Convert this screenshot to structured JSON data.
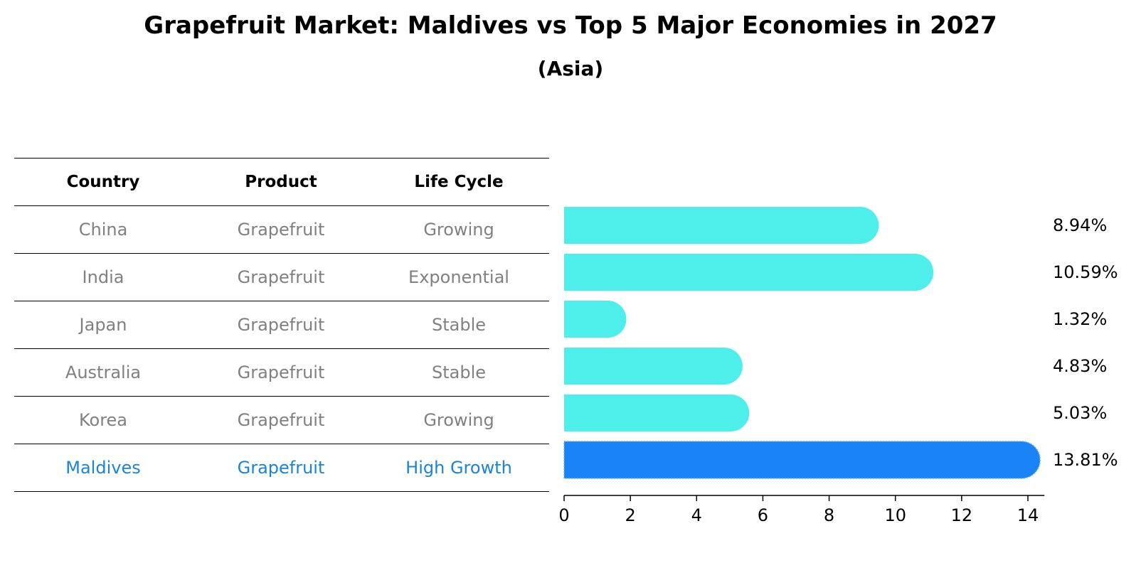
{
  "title": "Grapefruit Market: Maldives vs Top 5 Major Economies in 2027",
  "subtitle": "(Asia)",
  "table": {
    "headers": [
      "Country",
      "Product",
      "Life Cycle"
    ],
    "rows": [
      {
        "country": "China",
        "product": "Grapefruit",
        "life_cycle": "Growing"
      },
      {
        "country": "India",
        "product": "Grapefruit",
        "life_cycle": "Exponential"
      },
      {
        "country": "Japan",
        "product": "Grapefruit",
        "life_cycle": "Stable"
      },
      {
        "country": "Australia",
        "product": "Grapefruit",
        "life_cycle": "Stable"
      },
      {
        "country": "Korea",
        "product": "Grapefruit",
        "life_cycle": "Growing"
      },
      {
        "country": "Maldives",
        "product": "Grapefruit",
        "life_cycle": "High Growth"
      }
    ]
  },
  "chart_data": {
    "type": "bar",
    "orientation": "horizontal",
    "title": "Grapefruit Market: Maldives vs Top 5 Major Economies in 2027",
    "subtitle": "(Asia)",
    "categories": [
      "China",
      "India",
      "Japan",
      "Australia",
      "Korea",
      "Maldives"
    ],
    "values": [
      8.94,
      10.59,
      1.32,
      4.83,
      5.03,
      13.81
    ],
    "value_labels": [
      "8.94%",
      "10.59%",
      "1.32%",
      "4.83%",
      "5.03%",
      "13.81%"
    ],
    "highlight": "Maldives",
    "colors": {
      "default": "#4eeeea",
      "highlight": "#1a84f6"
    },
    "xlim": [
      0,
      14.5
    ],
    "xticks": [
      0,
      2,
      4,
      6,
      8,
      10,
      12,
      14
    ],
    "xlabel": "",
    "ylabel": ""
  }
}
